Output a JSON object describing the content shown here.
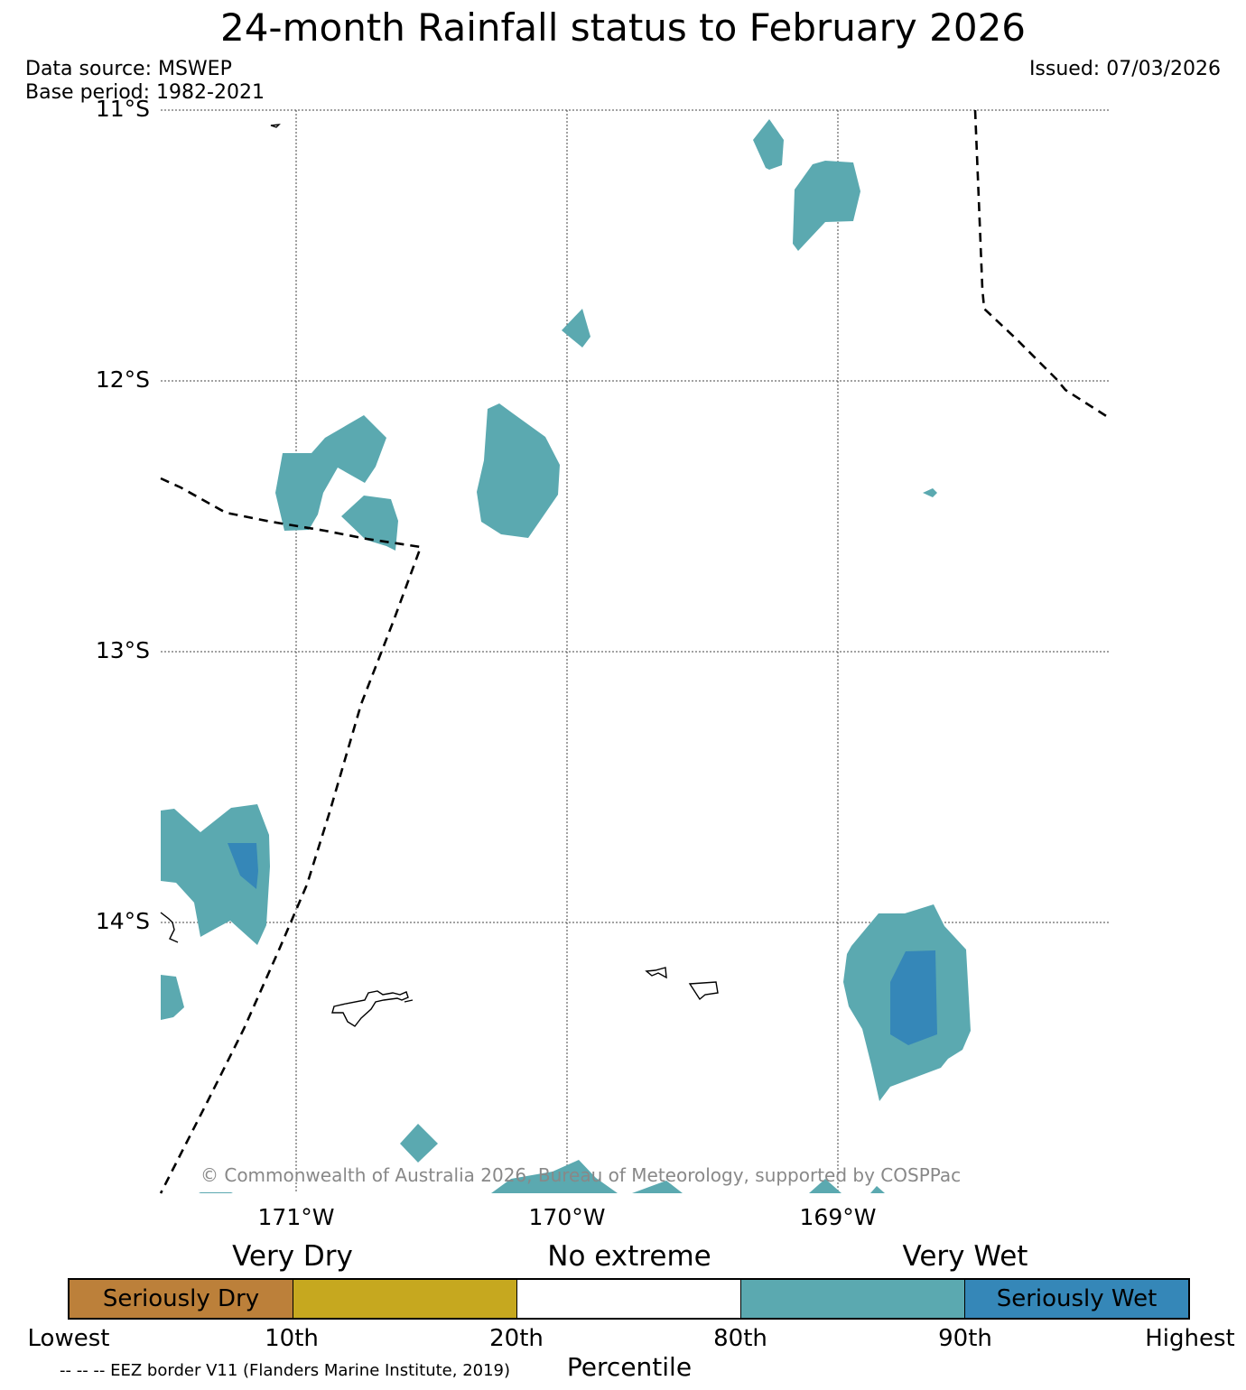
{
  "header": {
    "title": "24-month Rainfall status to February 2026",
    "data_source": "Data source: MSWEP",
    "base_period": "Base period: 1982-2021",
    "issued": "Issued: 07/03/2026"
  },
  "map": {
    "lat_labels": [
      "11°S",
      "12°S",
      "13°S",
      "14°S"
    ],
    "lon_labels": [
      "171°W",
      "170°W",
      "169°W"
    ],
    "copyright": "© Commonwealth of Australia 2026, Bureau of Meteorology, supported by COSPPac",
    "eez_note": "-- -- -- EEZ border V11 (Flanders Marine Institute, 2019)"
  },
  "legend": {
    "categories": [
      "Very Dry",
      "No extreme",
      "Very Wet"
    ],
    "segments": [
      {
        "label": "Seriously Dry",
        "color": "#bc803a"
      },
      {
        "label": "",
        "color": "#c6a81f"
      },
      {
        "label": "",
        "color": "#ffffff"
      },
      {
        "label": "",
        "color": "#5ba9b0"
      },
      {
        "label": "Seriously Wet",
        "color": "#3587b8"
      }
    ],
    "ticks": [
      "Lowest",
      "10th",
      "20th",
      "80th",
      "90th",
      "Highest"
    ],
    "axis_title": "Percentile"
  },
  "colors": {
    "very_wet": "#5ba9b0",
    "seriously_wet": "#3587b8",
    "very_dry": "#c6a81f",
    "seriously_dry": "#bc803a"
  }
}
